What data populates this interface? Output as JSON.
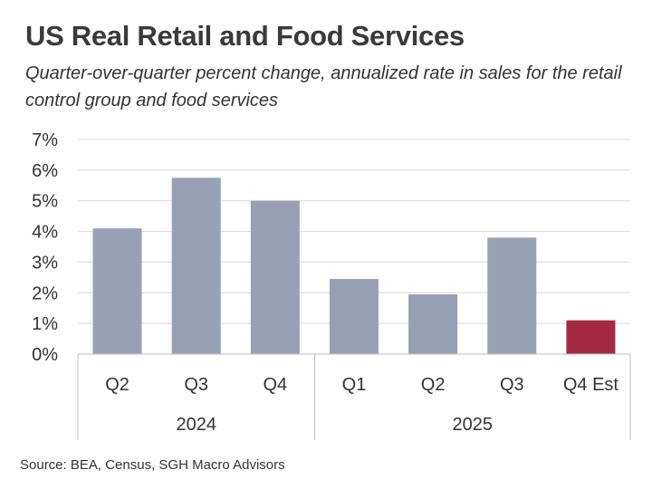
{
  "title": "US Real Retail and Food Services",
  "subtitle": "Quarter-over-quarter percent change, annualized rate in sales for the retail control group and food services",
  "source": "Source: BEA, Census, SGH Macro Advisors",
  "colors": {
    "bar": "#97a1b6",
    "highlight": "#a42a40",
    "grid": "#d9d9d9",
    "axis": "#bfbfbf",
    "text": "#333333"
  },
  "chart_data": {
    "type": "bar",
    "title": "US Real Retail and Food Services",
    "xlabel": "",
    "ylabel": "",
    "categories": [
      "Q2",
      "Q3",
      "Q4",
      "Q1",
      "Q2",
      "Q3",
      "Q4 Est"
    ],
    "groups": [
      {
        "label": "2024",
        "count": 3
      },
      {
        "label": "2025",
        "count": 4
      }
    ],
    "values": [
      4.1,
      5.75,
      5.0,
      2.45,
      1.95,
      3.8,
      1.1
    ],
    "highlight_index": 6,
    "ylim": [
      0,
      7
    ],
    "yticks": [
      0,
      1,
      2,
      3,
      4,
      5,
      6,
      7
    ],
    "ytick_labels": [
      "0%",
      "1%",
      "2%",
      "3%",
      "4%",
      "5%",
      "6%",
      "7%"
    ],
    "grid": true,
    "legend": "none"
  }
}
